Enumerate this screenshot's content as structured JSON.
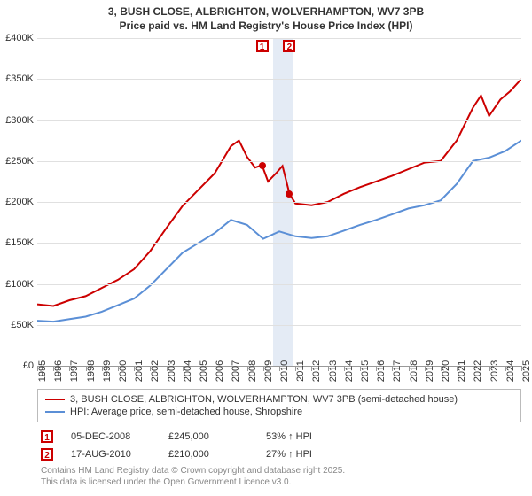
{
  "title_line1": "3, BUSH CLOSE, ALBRIGHTON, WOLVERHAMPTON, WV7 3PB",
  "title_line2": "Price paid vs. HM Land Registry's House Price Index (HPI)",
  "chart": {
    "type": "line",
    "background_color": "#ffffff",
    "grid_color": "#e0e0e0",
    "axis_color": "#999999",
    "xmin": 1995,
    "xmax": 2025,
    "x_ticks": [
      1995,
      1996,
      1997,
      1998,
      1999,
      2000,
      2001,
      2002,
      2003,
      2004,
      2005,
      2006,
      2007,
      2008,
      2009,
      2010,
      2011,
      2012,
      2013,
      2014,
      2015,
      2016,
      2017,
      2018,
      2019,
      2020,
      2021,
      2022,
      2023,
      2024,
      2025
    ],
    "ymin": 0,
    "ymax": 400000,
    "y_tick_step": 50000,
    "y_tick_labels": [
      "£0",
      "£50K",
      "£100K",
      "£150K",
      "£200K",
      "£250K",
      "£300K",
      "£350K",
      "£400K"
    ],
    "highlight_band": {
      "from": 2009.6,
      "to": 2010.9,
      "color": "#e4ebf5"
    },
    "series": [
      {
        "name": "3, BUSH CLOSE, ALBRIGHTON, WOLVERHAMPTON, WV7 3PB (semi-detached house)",
        "color": "#cc0000",
        "line_width": 2,
        "data": [
          [
            1995,
            75000
          ],
          [
            1996,
            73000
          ],
          [
            1997,
            80000
          ],
          [
            1998,
            85000
          ],
          [
            1999,
            95000
          ],
          [
            2000,
            105000
          ],
          [
            2001,
            118000
          ],
          [
            2002,
            140000
          ],
          [
            2003,
            168000
          ],
          [
            2004,
            195000
          ],
          [
            2005,
            215000
          ],
          [
            2006,
            235000
          ],
          [
            2007,
            268000
          ],
          [
            2007.5,
            275000
          ],
          [
            2008,
            255000
          ],
          [
            2008.5,
            242000
          ],
          [
            2008.93,
            245000
          ],
          [
            2009.3,
            225000
          ],
          [
            2009.8,
            235000
          ],
          [
            2010.2,
            244000
          ],
          [
            2010.63,
            210000
          ],
          [
            2011,
            198000
          ],
          [
            2012,
            196000
          ],
          [
            2013,
            200000
          ],
          [
            2014,
            210000
          ],
          [
            2015,
            218000
          ],
          [
            2016,
            225000
          ],
          [
            2017,
            232000
          ],
          [
            2018,
            240000
          ],
          [
            2019,
            248000
          ],
          [
            2020,
            250000
          ],
          [
            2021,
            275000
          ],
          [
            2022,
            315000
          ],
          [
            2022.5,
            330000
          ],
          [
            2023,
            305000
          ],
          [
            2023.7,
            325000
          ],
          [
            2024.3,
            335000
          ],
          [
            2025,
            350000
          ]
        ]
      },
      {
        "name": "HPI: Average price, semi-detached house, Shropshire",
        "color": "#5b8fd6",
        "line_width": 2,
        "data": [
          [
            1995,
            55000
          ],
          [
            1996,
            54000
          ],
          [
            1997,
            57000
          ],
          [
            1998,
            60000
          ],
          [
            1999,
            66000
          ],
          [
            2000,
            74000
          ],
          [
            2001,
            82000
          ],
          [
            2002,
            98000
          ],
          [
            2003,
            118000
          ],
          [
            2004,
            138000
          ],
          [
            2005,
            150000
          ],
          [
            2006,
            162000
          ],
          [
            2007,
            178000
          ],
          [
            2008,
            172000
          ],
          [
            2009,
            155000
          ],
          [
            2010,
            164000
          ],
          [
            2011,
            158000
          ],
          [
            2012,
            156000
          ],
          [
            2013,
            158000
          ],
          [
            2014,
            165000
          ],
          [
            2015,
            172000
          ],
          [
            2016,
            178000
          ],
          [
            2017,
            185000
          ],
          [
            2018,
            192000
          ],
          [
            2019,
            196000
          ],
          [
            2020,
            202000
          ],
          [
            2021,
            222000
          ],
          [
            2022,
            250000
          ],
          [
            2023,
            254000
          ],
          [
            2024,
            262000
          ],
          [
            2025,
            275000
          ]
        ]
      }
    ],
    "marker_labels": [
      {
        "id": "1",
        "x": 2008.93,
        "y_top": 400000,
        "color": "#cc0000"
      },
      {
        "id": "2",
        "x": 2010.63,
        "y_top": 400000,
        "color": "#cc0000"
      }
    ],
    "sale_points": [
      {
        "x": 2008.93,
        "y": 245000,
        "color": "#cc0000"
      },
      {
        "x": 2010.63,
        "y": 210000,
        "color": "#cc0000"
      }
    ]
  },
  "legend": {
    "items": [
      {
        "label": "3, BUSH CLOSE, ALBRIGHTON, WOLVERHAMPTON, WV7 3PB (semi-detached house)",
        "color": "#cc0000"
      },
      {
        "label": "HPI: Average price, semi-detached house, Shropshire",
        "color": "#5b8fd6"
      }
    ]
  },
  "sales": [
    {
      "marker": "1",
      "marker_color": "#cc0000",
      "date": "05-DEC-2008",
      "price": "£245,000",
      "hpi_delta": "53% ↑ HPI"
    },
    {
      "marker": "2",
      "marker_color": "#cc0000",
      "date": "17-AUG-2010",
      "price": "£210,000",
      "hpi_delta": "27% ↑ HPI"
    }
  ],
  "copyright_line1": "Contains HM Land Registry data © Crown copyright and database right 2025.",
  "copyright_line2": "This data is licensed under the Open Government Licence v3.0."
}
